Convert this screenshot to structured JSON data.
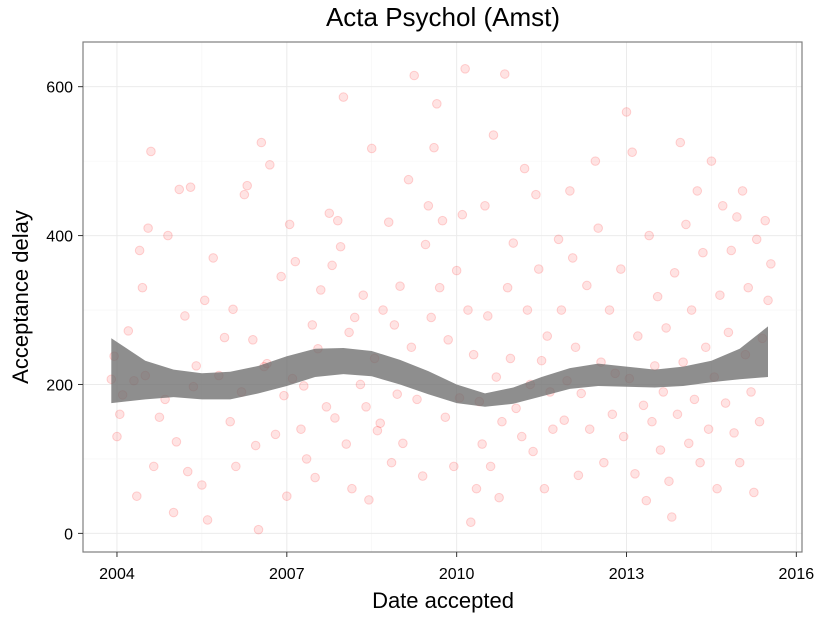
{
  "chart_data": {
    "type": "scatter",
    "title": "Acta Psychol (Amst)",
    "xlabel": "Date accepted",
    "ylabel": "Acceptance delay",
    "x_ticks": [
      "2004",
      "2007",
      "2010",
      "2013",
      "2016"
    ],
    "y_ticks": [
      "0",
      "200",
      "400",
      "600"
    ],
    "xlim": [
      2003.4,
      2016.1
    ],
    "ylim": [
      -25,
      660
    ],
    "grid": true,
    "legend": "none",
    "point_color": "#ff0000",
    "band_color": "#6e6e6e",
    "smooth_band": {
      "x": [
        2003.9,
        2004.5,
        2005.0,
        2005.5,
        2006.0,
        2006.5,
        2007.0,
        2007.5,
        2008.0,
        2008.5,
        2009.0,
        2009.5,
        2010.0,
        2010.5,
        2011.0,
        2011.5,
        2012.0,
        2012.5,
        2013.0,
        2013.5,
        2014.0,
        2014.5,
        2015.0,
        2015.5
      ],
      "lower": [
        175,
        180,
        183,
        180,
        180,
        188,
        198,
        210,
        214,
        211,
        200,
        187,
        175,
        170,
        174,
        184,
        194,
        198,
        197,
        196,
        198,
        203,
        207,
        210
      ],
      "upper": [
        262,
        232,
        220,
        215,
        217,
        225,
        238,
        248,
        249,
        245,
        233,
        218,
        200,
        188,
        196,
        210,
        222,
        228,
        224,
        220,
        224,
        232,
        248,
        278
      ]
    },
    "series": [
      {
        "points": [
          [
            2003.9,
            207
          ],
          [
            2003.95,
            238
          ],
          [
            2004.0,
            130
          ],
          [
            2004.05,
            160
          ],
          [
            2004.1,
            186
          ],
          [
            2004.2,
            272
          ],
          [
            2004.3,
            205
          ],
          [
            2004.35,
            50
          ],
          [
            2004.4,
            380
          ],
          [
            2004.45,
            330
          ],
          [
            2004.5,
            212
          ],
          [
            2004.55,
            410
          ],
          [
            2004.6,
            513
          ],
          [
            2004.65,
            90
          ],
          [
            2004.75,
            156
          ],
          [
            2004.85,
            180
          ],
          [
            2004.9,
            400
          ],
          [
            2005.0,
            28
          ],
          [
            2005.05,
            123
          ],
          [
            2005.1,
            462
          ],
          [
            2005.2,
            292
          ],
          [
            2005.25,
            83
          ],
          [
            2005.3,
            465
          ],
          [
            2005.35,
            197
          ],
          [
            2005.4,
            225
          ],
          [
            2005.5,
            65
          ],
          [
            2005.55,
            313
          ],
          [
            2005.6,
            18
          ],
          [
            2005.7,
            370
          ],
          [
            2005.8,
            212
          ],
          [
            2005.9,
            263
          ],
          [
            2006.0,
            150
          ],
          [
            2006.05,
            301
          ],
          [
            2006.1,
            90
          ],
          [
            2006.2,
            190
          ],
          [
            2006.25,
            455
          ],
          [
            2006.3,
            467
          ],
          [
            2006.4,
            260
          ],
          [
            2006.45,
            118
          ],
          [
            2006.5,
            5
          ],
          [
            2006.55,
            525
          ],
          [
            2006.6,
            224
          ],
          [
            2006.65,
            228
          ],
          [
            2006.7,
            495
          ],
          [
            2006.8,
            133
          ],
          [
            2006.9,
            345
          ],
          [
            2006.95,
            185
          ],
          [
            2007.0,
            50
          ],
          [
            2007.05,
            415
          ],
          [
            2007.1,
            208
          ],
          [
            2007.15,
            365
          ],
          [
            2007.25,
            140
          ],
          [
            2007.3,
            198
          ],
          [
            2007.35,
            100
          ],
          [
            2007.45,
            280
          ],
          [
            2007.5,
            75
          ],
          [
            2007.55,
            248
          ],
          [
            2007.6,
            327
          ],
          [
            2007.7,
            170
          ],
          [
            2007.75,
            430
          ],
          [
            2007.8,
            360
          ],
          [
            2007.85,
            155
          ],
          [
            2007.9,
            420
          ],
          [
            2007.95,
            385
          ],
          [
            2008.0,
            586
          ],
          [
            2008.05,
            120
          ],
          [
            2008.1,
            270
          ],
          [
            2008.15,
            60
          ],
          [
            2008.2,
            290
          ],
          [
            2008.3,
            200
          ],
          [
            2008.35,
            320
          ],
          [
            2008.4,
            170
          ],
          [
            2008.45,
            45
          ],
          [
            2008.5,
            517
          ],
          [
            2008.55,
            235
          ],
          [
            2008.6,
            138
          ],
          [
            2008.65,
            148
          ],
          [
            2008.7,
            300
          ],
          [
            2008.8,
            418
          ],
          [
            2008.85,
            95
          ],
          [
            2008.9,
            280
          ],
          [
            2008.95,
            187
          ],
          [
            2009.0,
            332
          ],
          [
            2009.05,
            121
          ],
          [
            2009.15,
            475
          ],
          [
            2009.2,
            250
          ],
          [
            2009.25,
            615
          ],
          [
            2009.3,
            180
          ],
          [
            2009.4,
            77
          ],
          [
            2009.45,
            388
          ],
          [
            2009.5,
            440
          ],
          [
            2009.55,
            290
          ],
          [
            2009.6,
            518
          ],
          [
            2009.65,
            577
          ],
          [
            2009.7,
            330
          ],
          [
            2009.75,
            420
          ],
          [
            2009.8,
            156
          ],
          [
            2009.85,
            260
          ],
          [
            2009.95,
            90
          ],
          [
            2010.0,
            353
          ],
          [
            2010.05,
            182
          ],
          [
            2010.1,
            428
          ],
          [
            2010.15,
            624
          ],
          [
            2010.2,
            300
          ],
          [
            2010.25,
            15
          ],
          [
            2010.3,
            240
          ],
          [
            2010.35,
            60
          ],
          [
            2010.4,
            177
          ],
          [
            2010.45,
            120
          ],
          [
            2010.5,
            440
          ],
          [
            2010.55,
            292
          ],
          [
            2010.6,
            90
          ],
          [
            2010.65,
            535
          ],
          [
            2010.7,
            210
          ],
          [
            2010.75,
            48
          ],
          [
            2010.8,
            150
          ],
          [
            2010.85,
            617
          ],
          [
            2010.9,
            330
          ],
          [
            2010.95,
            235
          ],
          [
            2011.0,
            390
          ],
          [
            2011.05,
            168
          ],
          [
            2011.15,
            130
          ],
          [
            2011.2,
            490
          ],
          [
            2011.25,
            300
          ],
          [
            2011.3,
            200
          ],
          [
            2011.35,
            110
          ],
          [
            2011.4,
            455
          ],
          [
            2011.45,
            355
          ],
          [
            2011.5,
            232
          ],
          [
            2011.55,
            60
          ],
          [
            2011.6,
            265
          ],
          [
            2011.65,
            190
          ],
          [
            2011.7,
            140
          ],
          [
            2011.8,
            395
          ],
          [
            2011.85,
            300
          ],
          [
            2011.9,
            152
          ],
          [
            2011.95,
            205
          ],
          [
            2012.0,
            460
          ],
          [
            2012.05,
            370
          ],
          [
            2012.1,
            250
          ],
          [
            2012.15,
            78
          ],
          [
            2012.2,
            188
          ],
          [
            2012.3,
            333
          ],
          [
            2012.35,
            140
          ],
          [
            2012.45,
            500
          ],
          [
            2012.5,
            410
          ],
          [
            2012.55,
            230
          ],
          [
            2012.6,
            95
          ],
          [
            2012.7,
            300
          ],
          [
            2012.75,
            160
          ],
          [
            2012.8,
            215
          ],
          [
            2012.9,
            355
          ],
          [
            2012.95,
            130
          ],
          [
            2013.0,
            566
          ],
          [
            2013.05,
            208
          ],
          [
            2013.1,
            512
          ],
          [
            2013.15,
            80
          ],
          [
            2013.2,
            265
          ],
          [
            2013.3,
            172
          ],
          [
            2013.35,
            44
          ],
          [
            2013.4,
            400
          ],
          [
            2013.45,
            150
          ],
          [
            2013.5,
            225
          ],
          [
            2013.55,
            318
          ],
          [
            2013.6,
            112
          ],
          [
            2013.65,
            190
          ],
          [
            2013.7,
            276
          ],
          [
            2013.75,
            70
          ],
          [
            2013.8,
            22
          ],
          [
            2013.85,
            350
          ],
          [
            2013.9,
            160
          ],
          [
            2013.95,
            525
          ],
          [
            2014.0,
            230
          ],
          [
            2014.05,
            415
          ],
          [
            2014.1,
            121
          ],
          [
            2014.15,
            300
          ],
          [
            2014.2,
            180
          ],
          [
            2014.25,
            460
          ],
          [
            2014.3,
            95
          ],
          [
            2014.35,
            377
          ],
          [
            2014.4,
            250
          ],
          [
            2014.45,
            140
          ],
          [
            2014.5,
            500
          ],
          [
            2014.55,
            210
          ],
          [
            2014.6,
            60
          ],
          [
            2014.65,
            320
          ],
          [
            2014.7,
            440
          ],
          [
            2014.75,
            175
          ],
          [
            2014.8,
            270
          ],
          [
            2014.85,
            380
          ],
          [
            2014.9,
            135
          ],
          [
            2014.95,
            425
          ],
          [
            2015.0,
            95
          ],
          [
            2015.05,
            460
          ],
          [
            2015.1,
            240
          ],
          [
            2015.15,
            330
          ],
          [
            2015.2,
            190
          ],
          [
            2015.25,
            55
          ],
          [
            2015.3,
            395
          ],
          [
            2015.35,
            150
          ],
          [
            2015.4,
            262
          ],
          [
            2015.45,
            420
          ],
          [
            2015.5,
            313
          ],
          [
            2015.55,
            362
          ]
        ]
      }
    ]
  }
}
